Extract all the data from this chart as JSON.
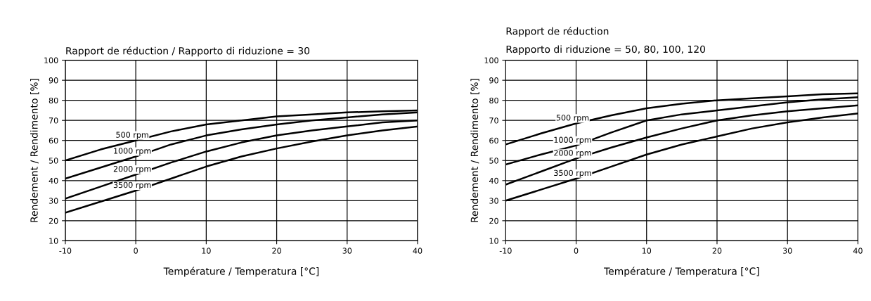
{
  "chart_data": [
    {
      "type": "line",
      "title": "Rapport de réduction / Rapporto di riduzione = 30",
      "xlabel": "Température / Temperatura [°C]",
      "ylabel": "Rendement / Rendimento [%]",
      "x": [
        -10,
        -5,
        0,
        5,
        10,
        15,
        20,
        25,
        30,
        35,
        40
      ],
      "xlim": [
        -10,
        40
      ],
      "ylim": [
        10,
        100
      ],
      "xticks": [
        -10,
        0,
        10,
        20,
        30,
        40
      ],
      "yticks": [
        10,
        20,
        30,
        40,
        50,
        60,
        70,
        80,
        90,
        100
      ],
      "grid": true,
      "marker": "none",
      "line_style": "solid",
      "series": [
        {
          "name": "500 rpm",
          "color": "#000000",
          "values": [
            50,
            55.5,
            60,
            64.5,
            68,
            70,
            72,
            73,
            74,
            74.5,
            75
          ]
        },
        {
          "name": "1000 rpm",
          "color": "#000000",
          "values": [
            41,
            46.5,
            52,
            58,
            62.5,
            65.5,
            68,
            70,
            71.5,
            73,
            74
          ]
        },
        {
          "name": "2000 rpm",
          "color": "#000000",
          "values": [
            31,
            37,
            43,
            49,
            54.5,
            59,
            62.5,
            65,
            67,
            69,
            70
          ]
        },
        {
          "name": "3500 rpm",
          "color": "#000000",
          "values": [
            24,
            29.5,
            35,
            41,
            47,
            52,
            56,
            59.5,
            62.5,
            65,
            67
          ]
        }
      ]
    },
    {
      "type": "line",
      "title": "Rapport de réduction",
      "subtitle": "Rapporto di riduzione = 50, 80, 100, 120",
      "xlabel": "Température / Temperatura [°C]",
      "ylabel": "Rendement / Rendimento [%]",
      "x": [
        -10,
        -5,
        0,
        5,
        10,
        15,
        20,
        25,
        30,
        35,
        40
      ],
      "xlim": [
        -10,
        40
      ],
      "ylim": [
        10,
        100
      ],
      "xticks": [
        -10,
        0,
        10,
        20,
        30,
        40
      ],
      "yticks": [
        10,
        20,
        30,
        40,
        50,
        60,
        70,
        80,
        90,
        100
      ],
      "grid": true,
      "marker": "none",
      "line_style": "solid",
      "series": [
        {
          "name": "500 rpm",
          "color": "#000000",
          "values": [
            58,
            63.5,
            68.5,
            72.5,
            76,
            78.3,
            80,
            81,
            82,
            83,
            83.5
          ]
        },
        {
          "name": "1000 rpm",
          "color": "#000000",
          "values": [
            48,
            53,
            57.5,
            64,
            70,
            73,
            75,
            77,
            79,
            80.5,
            81.5
          ]
        },
        {
          "name": "2000 rpm",
          "color": "#000000",
          "values": [
            38,
            44.5,
            51,
            56.5,
            61.5,
            66,
            70,
            72.5,
            74.5,
            76,
            77.5
          ]
        },
        {
          "name": "3500 rpm",
          "color": "#000000",
          "values": [
            30,
            35.5,
            41,
            47,
            53,
            58,
            62,
            66,
            69,
            71.5,
            73.5
          ]
        }
      ]
    }
  ]
}
